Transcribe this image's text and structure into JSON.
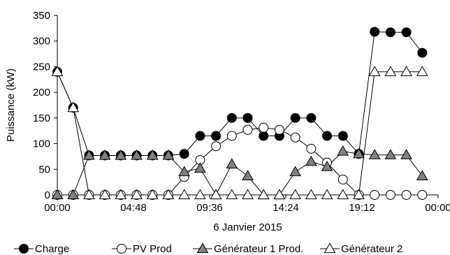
{
  "chart_data": {
    "type": "line",
    "xlabel": "6 Janvier 2015",
    "ylabel": "Puissance (kW)",
    "ylim": [
      0,
      350
    ],
    "yticks": [
      0,
      50,
      100,
      150,
      200,
      250,
      300,
      350
    ],
    "xlim_hours": [
      0,
      24
    ],
    "xtick_labels": [
      "00:00",
      "04:48",
      "09:36",
      "14:24",
      "19:12",
      "00:00"
    ],
    "x_hours": [
      0,
      1,
      2,
      3,
      4,
      5,
      6,
      7,
      8,
      9,
      10,
      11,
      12,
      13,
      14,
      15,
      16,
      17,
      18,
      19,
      20,
      21,
      22,
      23
    ],
    "legend_position": "bottom",
    "grid": false,
    "series": [
      {
        "name": "Charge",
        "marker": "circle",
        "fill": "#000000",
        "values": [
          240,
          170,
          77,
          77,
          77,
          77,
          77,
          77,
          80,
          115,
          115,
          150,
          150,
          115,
          115,
          150,
          150,
          115,
          115,
          80,
          318,
          317,
          317,
          277
        ]
      },
      {
        "name": "PV Prod",
        "marker": "circle",
        "fill": "#ffffff",
        "values": [
          0,
          0,
          0,
          0,
          0,
          0,
          0,
          0,
          35,
          68,
          95,
          115,
          127,
          131,
          127,
          112,
          90,
          63,
          30,
          0,
          0,
          0,
          0,
          0
        ]
      },
      {
        "name": "Générateur 1 Prod.",
        "marker": "triangle",
        "fill": "#808080",
        "values": [
          0,
          0,
          77,
          77,
          77,
          77,
          77,
          77,
          45,
          52,
          0,
          60,
          37,
          0,
          0,
          45,
          65,
          55,
          85,
          80,
          78,
          78,
          78,
          37
        ]
      },
      {
        "name": "Générateur 2",
        "marker": "triangle",
        "fill": "#ffffff",
        "values": [
          240,
          170,
          0,
          0,
          0,
          0,
          0,
          0,
          0,
          0,
          0,
          0,
          0,
          0,
          0,
          0,
          0,
          0,
          0,
          0,
          240,
          240,
          240,
          240
        ]
      }
    ]
  }
}
